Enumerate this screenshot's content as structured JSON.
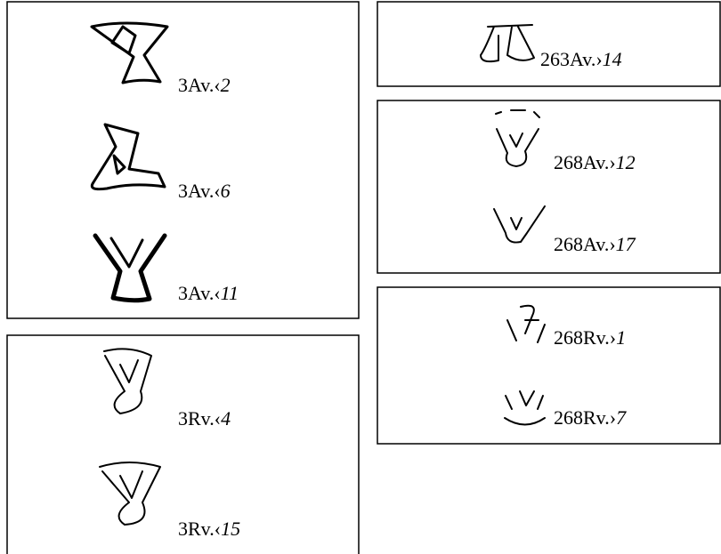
{
  "panels": [
    {
      "items": [
        {
          "ref": "3Av.‹",
          "num": "2"
        },
        {
          "ref": "3Av.‹",
          "num": "6"
        },
        {
          "ref": "3Av.‹",
          "num": "11"
        }
      ]
    },
    {
      "items": [
        {
          "ref": "3Rv.‹",
          "num": "4"
        },
        {
          "ref": "3Rv.‹",
          "num": "15"
        }
      ]
    },
    {
      "items": [
        {
          "ref": "263Av.›",
          "num": "14"
        }
      ]
    },
    {
      "items": [
        {
          "ref": "268Av.›",
          "num": "12"
        },
        {
          "ref": "268Av.›",
          "num": "17"
        }
      ]
    },
    {
      "items": [
        {
          "ref": "268Rv.›",
          "num": "1"
        },
        {
          "ref": "268Rv.›",
          "num": "7"
        }
      ]
    }
  ]
}
